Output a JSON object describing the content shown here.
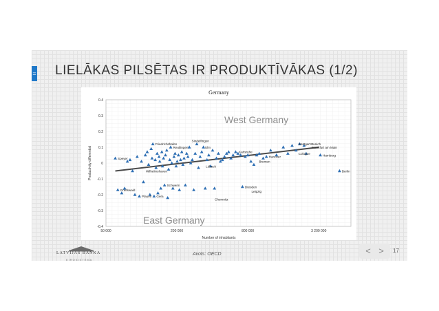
{
  "slide": {
    "menu_glyph": "=",
    "title": "LIELĀKAS PILSĒTAS IR PRODUKTĪVĀKAS (1/2)",
    "source": "Avots: OECD",
    "page_number": "17",
    "prev_glyph": "<",
    "next_glyph": ">",
    "logo": {
      "name": "LATVIJAS BANKA",
      "subline": "EIROSISTĒMA",
      "icon": "bank-building-logo"
    }
  },
  "colors": {
    "accent": "#1f78c8",
    "marker": "#2e6fb4",
    "trend": "#4a4a4a"
  },
  "chart_data": {
    "type": "scatter",
    "title": "Germany",
    "xlabel": "Number of inhabitants",
    "ylabel": "Productivity differential",
    "x_scale": "log",
    "xlim": [
      50000,
      6000000
    ],
    "ylim": [
      -0.4,
      0.4
    ],
    "x_ticks": [
      50000,
      200000,
      800000,
      3200000
    ],
    "x_tick_labels": [
      "50 000",
      "200 000",
      "800 000",
      "3 200 000"
    ],
    "y_ticks": [
      0.4,
      0.3,
      0.2,
      0.1,
      0,
      -0.1,
      -0.2,
      -0.3,
      -0.4
    ],
    "y_tick_labels": [
      "0.4",
      "0.3",
      "0.2",
      "0.1",
      "0",
      "-0.1",
      "-0.2",
      "-0.3",
      "-0.4"
    ],
    "grid": true,
    "annotations": [
      "West Germany",
      "East Germany"
    ],
    "trend": [
      [
        60000,
        -0.05
      ],
      [
        3200000,
        0.1
      ]
    ],
    "points": [
      {
        "x": 60000,
        "y": 0.03
      },
      {
        "x": 63000,
        "y": -0.17
      },
      {
        "x": 68000,
        "y": -0.19
      },
      {
        "x": 72000,
        "y": -0.16
      },
      {
        "x": 76000,
        "y": 0.01
      },
      {
        "x": 80000,
        "y": 0.02
      },
      {
        "x": 84000,
        "y": -0.05
      },
      {
        "x": 88000,
        "y": -0.2
      },
      {
        "x": 92000,
        "y": 0.04
      },
      {
        "x": 96000,
        "y": -0.21
      },
      {
        "x": 100000,
        "y": 0.01
      },
      {
        "x": 104000,
        "y": -0.12
      },
      {
        "x": 108000,
        "y": 0.05
      },
      {
        "x": 112000,
        "y": 0.07
      },
      {
        "x": 115000,
        "y": -0.01
      },
      {
        "x": 118000,
        "y": -0.2
      },
      {
        "x": 121000,
        "y": 0.09
      },
      {
        "x": 123000,
        "y": 0.03
      },
      {
        "x": 125000,
        "y": 0.12
      },
      {
        "x": 128000,
        "y": -0.21
      },
      {
        "x": 131000,
        "y": 0.02
      },
      {
        "x": 133000,
        "y": -0.03
      },
      {
        "x": 136000,
        "y": 0.06
      },
      {
        "x": 138000,
        "y": -0.19
      },
      {
        "x": 141000,
        "y": 0.04
      },
      {
        "x": 143000,
        "y": 0.01
      },
      {
        "x": 146000,
        "y": -0.16
      },
      {
        "x": 149000,
        "y": 0.07
      },
      {
        "x": 151000,
        "y": -0.02
      },
      {
        "x": 154000,
        "y": 0.03
      },
      {
        "x": 157000,
        "y": -0.14
      },
      {
        "x": 160000,
        "y": 0.05
      },
      {
        "x": 164000,
        "y": 0.08
      },
      {
        "x": 167000,
        "y": -0.22
      },
      {
        "x": 170000,
        "y": -0.04
      },
      {
        "x": 174000,
        "y": 0.02
      },
      {
        "x": 177000,
        "y": 0.1
      },
      {
        "x": 181000,
        "y": 0.0
      },
      {
        "x": 185000,
        "y": -0.16
      },
      {
        "x": 189000,
        "y": 0.04
      },
      {
        "x": 193000,
        "y": 0.06
      },
      {
        "x": 197000,
        "y": -0.02
      },
      {
        "x": 201000,
        "y": 0.01
      },
      {
        "x": 206000,
        "y": 0.05
      },
      {
        "x": 210000,
        "y": -0.17
      },
      {
        "x": 215000,
        "y": 0.02
      },
      {
        "x": 220000,
        "y": 0.07
      },
      {
        "x": 225000,
        "y": -0.01
      },
      {
        "x": 230000,
        "y": 0.03
      },
      {
        "x": 236000,
        "y": -0.14
      },
      {
        "x": 242000,
        "y": 0.06
      },
      {
        "x": 248000,
        "y": 0.04
      },
      {
        "x": 255000,
        "y": 0.1
      },
      {
        "x": 262000,
        "y": 0.0
      },
      {
        "x": 270000,
        "y": 0.02
      },
      {
        "x": 278000,
        "y": -0.17
      },
      {
        "x": 286000,
        "y": 0.06
      },
      {
        "x": 295000,
        "y": 0.12
      },
      {
        "x": 305000,
        "y": -0.03
      },
      {
        "x": 315000,
        "y": 0.04
      },
      {
        "x": 325000,
        "y": 0.07
      },
      {
        "x": 336000,
        "y": 0.1
      },
      {
        "x": 348000,
        "y": -0.16
      },
      {
        "x": 360000,
        "y": 0.02
      },
      {
        "x": 373000,
        "y": 0.05
      },
      {
        "x": 387000,
        "y": -0.02
      },
      {
        "x": 402000,
        "y": 0.08
      },
      {
        "x": 417000,
        "y": -0.16
      },
      {
        "x": 433000,
        "y": 0.03
      },
      {
        "x": 450000,
        "y": 0.06
      },
      {
        "x": 468000,
        "y": 0.01
      },
      {
        "x": 487000,
        "y": 0.02
      },
      {
        "x": 507000,
        "y": 0.04
      },
      {
        "x": 528000,
        "y": 0.06
      },
      {
        "x": 550000,
        "y": 0.07
      },
      {
        "x": 575000,
        "y": 0.03
      },
      {
        "x": 600000,
        "y": 0.05
      },
      {
        "x": 630000,
        "y": 0.07
      },
      {
        "x": 660000,
        "y": 0.06
      },
      {
        "x": 695000,
        "y": 0.05
      },
      {
        "x": 720000,
        "y": -0.15
      },
      {
        "x": 760000,
        "y": 0.04
      },
      {
        "x": 800000,
        "y": 0.05
      },
      {
        "x": 850000,
        "y": 0.01
      },
      {
        "x": 900000,
        "y": -0.01
      },
      {
        "x": 950000,
        "y": 0.05
      },
      {
        "x": 1000000,
        "y": 0.06
      },
      {
        "x": 1080000,
        "y": 0.03
      },
      {
        "x": 1150000,
        "y": 0.04
      },
      {
        "x": 1250000,
        "y": 0.08
      },
      {
        "x": 1400000,
        "y": 0.05
      },
      {
        "x": 1600000,
        "y": 0.1
      },
      {
        "x": 1750000,
        "y": 0.06
      },
      {
        "x": 1900000,
        "y": 0.11
      },
      {
        "x": 2050000,
        "y": 0.08
      },
      {
        "x": 2200000,
        "y": 0.12
      },
      {
        "x": 2400000,
        "y": 0.11
      },
      {
        "x": 2500000,
        "y": 0.06
      },
      {
        "x": 3300000,
        "y": 0.05
      },
      {
        "x": 4800000,
        "y": -0.05
      }
    ],
    "point_labels": [
      {
        "text": "Speyer",
        "x": 60000,
        "y": 0.03
      },
      {
        "text": "Greifswald",
        "x": 63000,
        "y": -0.17
      },
      {
        "text": "Plauen",
        "x": 96000,
        "y": -0.21
      },
      {
        "text": "Gera",
        "x": 128000,
        "y": -0.21
      },
      {
        "text": "Wilhelmshaven",
        "x": 104000,
        "y": -0.05
      },
      {
        "text": "Friedrichshafen",
        "x": 125000,
        "y": 0.12
      },
      {
        "text": "Reutlingen",
        "x": 177000,
        "y": 0.1
      },
      {
        "text": "Sindelfingen",
        "x": 255000,
        "y": 0.14
      },
      {
        "text": "Ulm",
        "x": 330000,
        "y": 0.1
      },
      {
        "text": "Schwerin",
        "x": 157000,
        "y": -0.14
      },
      {
        "text": "Lübeck",
        "x": 336000,
        "y": -0.02
      },
      {
        "text": "Chemnitz",
        "x": 400000,
        "y": -0.23
      },
      {
        "text": "Karlsruhe",
        "x": 640000,
        "y": 0.07
      },
      {
        "text": "Dresden",
        "x": 720000,
        "y": -0.15
      },
      {
        "text": "Leipzig",
        "x": 820000,
        "y": -0.18
      },
      {
        "text": "Hanover",
        "x": 1150000,
        "y": 0.04
      },
      {
        "text": "Bremen",
        "x": 950000,
        "y": 0.01
      },
      {
        "text": "Stuttgart",
        "x": 2050000,
        "y": 0.12
      },
      {
        "text": "Munich",
        "x": 2600000,
        "y": 0.12
      },
      {
        "text": "Frankfurt am Main",
        "x": 2650000,
        "y": 0.1
      },
      {
        "text": "Cologne",
        "x": 2050000,
        "y": 0.06
      },
      {
        "text": "Hamburg",
        "x": 3300000,
        "y": 0.05
      },
      {
        "text": "Berlin",
        "x": 4800000,
        "y": -0.05
      }
    ]
  }
}
